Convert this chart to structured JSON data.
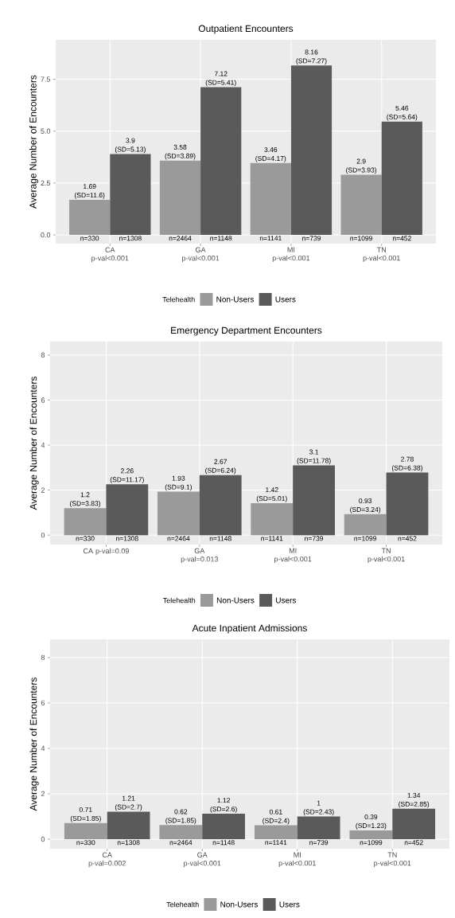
{
  "chart_data": [
    {
      "type": "bar",
      "title": "Outpatient Encounters",
      "ylabel": "Average Number of Encounters",
      "categories": [
        "CA p-val<0.001",
        "GA p-val<0.001",
        "MI p-val<0.001",
        "TN p-val<0.001"
      ],
      "series": [
        {
          "name": "Non-Users",
          "color": "#9a9a9a",
          "values": [
            1.69,
            3.58,
            3.46,
            2.9
          ],
          "value_labels": [
            "1.69 (SD=11.6)",
            "3.58 (SD=3.89)",
            "3.46 (SD=4.17)",
            "2.9 (SD=3.93)"
          ]
        },
        {
          "name": "Users",
          "color": "#5a5a5a",
          "values": [
            3.9,
            7.12,
            8.16,
            5.46
          ],
          "value_labels": [
            "3.9 (SD=5.13)",
            "7.12 (SD=5.41)",
            "8.16 (SD=7.27)",
            "5.46 (SD=5.64)"
          ]
        }
      ],
      "ylim": [
        -0.42,
        9.4
      ],
      "yticks": [
        {
          "value": 0,
          "label": "0.0"
        },
        {
          "value": 2.5,
          "label": "2.5"
        },
        {
          "value": 5,
          "label": "5.0"
        },
        {
          "value": 7.5,
          "label": "7.5"
        }
      ],
      "grid": true,
      "legend": "bottom",
      "legend_title": "Telehealth",
      "annotations": [
        "n=330",
        "n=1308",
        "n=2464",
        "n=1148",
        "n=1141",
        "n=739",
        "n=1099",
        "n=452"
      ]
    },
    {
      "type": "bar",
      "title": "Emergency Department Encounters",
      "ylabel": "Average Number of Encounters",
      "categories": [
        "CA p-val=0.09",
        "GA p-val=0.013",
        "MI p-val<0.001",
        "TN p-val<0.001"
      ],
      "series": [
        {
          "name": "Non-Users",
          "color": "#9a9a9a",
          "values": [
            1.2,
            1.93,
            1.42,
            0.93
          ],
          "value_labels": [
            "1.2 (SD=3.83)",
            "1.93 (SD=9.1)",
            "1.42 (SD=5.01)",
            "0.93 (SD=3.24)"
          ]
        },
        {
          "name": "Users",
          "color": "#5a5a5a",
          "values": [
            2.26,
            2.67,
            3.1,
            2.78
          ],
          "value_labels": [
            "2.26 (SD=11.17)",
            "2.67 (SD=6.24)",
            "3.1 (SD=11.78)",
            "2.78 (SD=6.38)"
          ]
        }
      ],
      "ylim": [
        -0.42,
        8.6
      ],
      "yticks": [
        0,
        2,
        4,
        6,
        8
      ],
      "grid": true,
      "legend": "bottom",
      "legend_title": "Telehealth",
      "annotations": [
        "n=330",
        "n=1308",
        "n=2464",
        "n=1148",
        "n=1141",
        "n=739",
        "n=1099",
        "n=452"
      ]
    },
    {
      "type": "bar",
      "title": "Acute Inpatient Admissions",
      "ylabel": "Average Number of Encounters",
      "categories": [
        "CA p-val=0.002",
        "GA p-val<0.001",
        "MI p-val<0.001",
        "TN p-val<0.001"
      ],
      "series": [
        {
          "name": "Non-Users",
          "color": "#9a9a9a",
          "values": [
            0.71,
            0.62,
            0.61,
            0.39
          ],
          "value_labels": [
            "0.71 (SD=1.85)",
            "0.62 (SD=1.85)",
            "0.61 (SD=2.4)",
            "0.39 (SD=1.23)"
          ]
        },
        {
          "name": "Users",
          "color": "#5a5a5a",
          "values": [
            1.21,
            1.12,
            1,
            1.34
          ],
          "value_labels": [
            "1.21 (SD=2.7)",
            "1.12 (SD=2.6)",
            "1 (SD=2.43)",
            "1.34 (SD=2.85)"
          ]
        }
      ],
      "ylim": [
        -0.42,
        8.8
      ],
      "yticks": [
        0,
        2,
        4,
        6,
        8
      ],
      "grid": true,
      "legend": "bottom",
      "legend_title": "Telehealth",
      "annotations": [
        "n=330",
        "n=1308",
        "n=2464",
        "n=1148",
        "n=1141",
        "n=739",
        "n=1099",
        "n=452"
      ]
    }
  ]
}
